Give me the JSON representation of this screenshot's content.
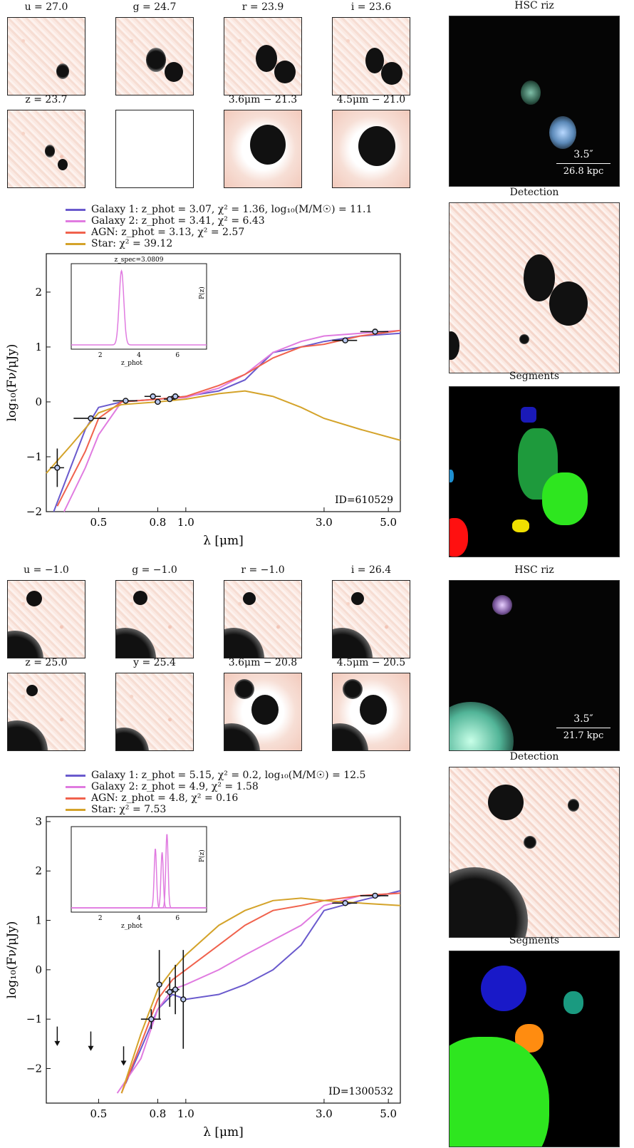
{
  "top": {
    "stamps": [
      {
        "label": "u = 27.0"
      },
      {
        "label": "g = 24.7"
      },
      {
        "label": "r = 23.9"
      },
      {
        "label": "i = 23.6"
      },
      {
        "label": "z = 23.7"
      },
      {
        "label": ""
      },
      {
        "label": "3.6μm − 21.3"
      },
      {
        "label": "4.5μm − 21.0"
      }
    ],
    "side": {
      "rgb_title": "HSC riz",
      "scale_arcsec": "3.5″",
      "scale_kpc": "26.8 kpc",
      "detection_title": "Detection",
      "segments_title": "Segments"
    },
    "legend": [
      {
        "text": "Galaxy 1: z_phot = 3.07, χ² = 1.36, log₁₀(M/M☉) = 11.1",
        "color": "#6a5acd"
      },
      {
        "text": "Galaxy 2: z_phot = 3.41, χ² = 6.43",
        "color": "#e07be0"
      },
      {
        "text": "AGN: z_phot = 3.13, χ² = 2.57",
        "color": "#f0624d"
      },
      {
        "text": "Star: χ² = 39.12",
        "color": "#d4a32a"
      }
    ],
    "chart_data": {
      "type": "line",
      "id_label": "ID=610529",
      "xlabel": "λ [μm]",
      "ylabel": "log₁₀(Fν/μJy)",
      "xscale": "log",
      "xlim": [
        0.33,
        5.5
      ],
      "ylim": [
        -2.0,
        2.7
      ],
      "xticks": [
        0.5,
        0.8,
        1.0,
        3.0,
        5.0
      ],
      "xtick_labels": [
        "0.5",
        "0.8",
        "1.0",
        "3.0",
        "5.0"
      ],
      "yticks": [
        -2,
        -1,
        0,
        1,
        2
      ],
      "ytick_labels": [
        "−2",
        "−1",
        "0",
        "1",
        "2"
      ],
      "series": [
        {
          "name": "Galaxy 1",
          "color": "#6a5acd",
          "x": [
            0.35,
            0.4,
            0.45,
            0.5,
            0.6,
            0.8,
            1.0,
            1.3,
            1.6,
            2.0,
            2.5,
            3.0,
            4.0,
            5.5
          ],
          "y": [
            -2.0,
            -1.2,
            -0.5,
            -0.1,
            0.0,
            0.05,
            0.1,
            0.2,
            0.4,
            0.9,
            1.0,
            1.1,
            1.2,
            1.25
          ]
        },
        {
          "name": "Galaxy 2",
          "color": "#e07be0",
          "x": [
            0.38,
            0.45,
            0.5,
            0.6,
            0.8,
            1.0,
            1.3,
            1.6,
            2.0,
            2.5,
            3.0,
            4.0,
            5.5
          ],
          "y": [
            -2.0,
            -1.2,
            -0.6,
            0.0,
            0.05,
            0.08,
            0.25,
            0.5,
            0.9,
            1.1,
            1.2,
            1.25,
            1.3
          ]
        },
        {
          "name": "AGN",
          "color": "#f0624d",
          "x": [
            0.36,
            0.45,
            0.5,
            0.6,
            0.8,
            1.0,
            1.3,
            1.6,
            2.0,
            2.5,
            3.0,
            4.0,
            5.5
          ],
          "y": [
            -1.9,
            -0.9,
            -0.3,
            0.0,
            0.05,
            0.1,
            0.3,
            0.5,
            0.8,
            1.0,
            1.05,
            1.2,
            1.3
          ]
        },
        {
          "name": "Star",
          "color": "#d4a32a",
          "x": [
            0.33,
            0.4,
            0.5,
            0.6,
            0.8,
            1.0,
            1.3,
            1.6,
            2.0,
            2.5,
            3.0,
            4.0,
            5.5
          ],
          "y": [
            -1.3,
            -0.8,
            -0.2,
            -0.05,
            0.0,
            0.05,
            0.15,
            0.2,
            0.1,
            -0.1,
            -0.3,
            -0.5,
            -0.7
          ]
        }
      ],
      "photometry": [
        {
          "x": 0.36,
          "y": -1.2,
          "xerr": 0.02,
          "yerr": 0.35
        },
        {
          "x": 0.47,
          "y": -0.3,
          "xerr": 0.06,
          "yerr": 0.05
        },
        {
          "x": 0.62,
          "y": 0.02,
          "xerr": 0.06,
          "yerr": 0.03
        },
        {
          "x": 0.77,
          "y": 0.1,
          "xerr": 0.05,
          "yerr": 0.03
        },
        {
          "x": 0.8,
          "y": 0.0,
          "xerr": 0.02,
          "yerr": 0.05
        },
        {
          "x": 0.88,
          "y": 0.05,
          "xerr": 0.04,
          "yerr": 0.04
        },
        {
          "x": 0.92,
          "y": 0.1,
          "xerr": 0.03,
          "yerr": 0.03
        },
        {
          "x": 3.55,
          "y": 1.12,
          "xerr": 0.35,
          "yerr": 0.03
        },
        {
          "x": 4.5,
          "y": 1.28,
          "xerr": 0.5,
          "yerr": 0.03
        }
      ],
      "inset": {
        "title": "z_spec=3.0809",
        "xlabel": "z_phot",
        "ylabel": "P(z)",
        "xticks": [
          2,
          4,
          6
        ],
        "peaks": [
          {
            "z": 3.1,
            "width": 0.12,
            "height": 1.0
          }
        ]
      }
    }
  },
  "bottom": {
    "stamps": [
      {
        "label": "u = −1.0"
      },
      {
        "label": "g = −1.0"
      },
      {
        "label": "r = −1.0"
      },
      {
        "label": "i = 26.4"
      },
      {
        "label": "z = 25.0"
      },
      {
        "label": "y = 25.4"
      },
      {
        "label": "3.6μm − 20.8"
      },
      {
        "label": "4.5μm − 20.5"
      }
    ],
    "side": {
      "rgb_title": "HSC riz",
      "scale_arcsec": "3.5″",
      "scale_kpc": "21.7 kpc",
      "detection_title": "Detection",
      "segments_title": "Segments"
    },
    "legend": [
      {
        "text": "Galaxy 1: z_phot = 5.15, χ² = 0.2, log₁₀(M/M☉) = 12.5",
        "color": "#6a5acd"
      },
      {
        "text": "Galaxy 2: z_phot = 4.9, χ² = 1.58",
        "color": "#e07be0"
      },
      {
        "text": "AGN: z_phot = 4.8, χ² = 0.16",
        "color": "#f0624d"
      },
      {
        "text": "Star: χ² = 7.53",
        "color": "#d4a32a"
      }
    ],
    "chart_data": {
      "type": "line",
      "id_label": "ID=1300532",
      "xlabel": "λ [μm]",
      "ylabel": "log₁₀(Fν/μJy)",
      "xscale": "log",
      "xlim": [
        0.33,
        5.5
      ],
      "ylim": [
        -2.7,
        3.1
      ],
      "xticks": [
        0.5,
        0.8,
        1.0,
        3.0,
        5.0
      ],
      "xtick_labels": [
        "0.5",
        "0.8",
        "1.0",
        "3.0",
        "5.0"
      ],
      "yticks": [
        -2,
        -1,
        0,
        1,
        2,
        3
      ],
      "ytick_labels": [
        "−2",
        "−1",
        "0",
        "1",
        "2",
        "3"
      ],
      "series": [
        {
          "name": "Galaxy 1",
          "color": "#6a5acd",
          "x": [
            0.62,
            0.7,
            0.8,
            0.9,
            1.0,
            1.3,
            1.6,
            2.0,
            2.5,
            3.0,
            4.0,
            5.5
          ],
          "y": [
            -2.3,
            -1.6,
            -0.8,
            -0.5,
            -0.6,
            -0.5,
            -0.3,
            0.0,
            0.5,
            1.2,
            1.4,
            1.6
          ]
        },
        {
          "name": "Galaxy 2",
          "color": "#e07be0",
          "x": [
            0.58,
            0.7,
            0.8,
            0.9,
            1.0,
            1.3,
            1.6,
            2.0,
            2.5,
            3.0,
            4.0,
            5.5
          ],
          "y": [
            -2.5,
            -1.8,
            -0.8,
            -0.4,
            -0.3,
            0.0,
            0.3,
            0.6,
            0.9,
            1.3,
            1.5,
            1.55
          ]
        },
        {
          "name": "AGN",
          "color": "#f0624d",
          "x": [
            0.6,
            0.7,
            0.8,
            0.9,
            1.0,
            1.3,
            1.6,
            2.0,
            2.5,
            3.0,
            4.0,
            5.5
          ],
          "y": [
            -2.5,
            -1.5,
            -0.6,
            -0.2,
            0.0,
            0.5,
            0.9,
            1.2,
            1.3,
            1.4,
            1.5,
            1.55
          ]
        },
        {
          "name": "Star",
          "color": "#d4a32a",
          "x": [
            0.6,
            0.7,
            0.8,
            0.9,
            1.0,
            1.3,
            1.6,
            2.0,
            2.5,
            3.0,
            4.0,
            5.5
          ],
          "y": [
            -2.5,
            -1.3,
            -0.4,
            0.0,
            0.3,
            0.9,
            1.2,
            1.4,
            1.45,
            1.4,
            1.35,
            1.3
          ]
        }
      ],
      "photometry": [
        {
          "x": 0.76,
          "y": -1.0,
          "xerr": 0.06,
          "yerr": 0.2
        },
        {
          "x": 0.81,
          "y": -0.3,
          "xerr": 0.0,
          "yerr": 0.7
        },
        {
          "x": 0.88,
          "y": -0.45,
          "xerr": 0.03,
          "yerr": 0.3
        },
        {
          "x": 0.92,
          "y": -0.4,
          "xerr": 0.03,
          "yerr": 0.5
        },
        {
          "x": 0.98,
          "y": -0.6,
          "xerr": 0.0,
          "yerr": 1.0
        },
        {
          "x": 3.55,
          "y": 1.35,
          "xerr": 0.35,
          "yerr": 0.05
        },
        {
          "x": 4.5,
          "y": 1.5,
          "xerr": 0.5,
          "yerr": 0.05
        }
      ],
      "upper_limits": [
        {
          "x": 0.36,
          "y": -1.5
        },
        {
          "x": 0.47,
          "y": -1.6
        },
        {
          "x": 0.61,
          "y": -1.9
        }
      ],
      "inset": {
        "title": "",
        "xlabel": "z_phot",
        "ylabel": "P(z)",
        "xticks": [
          2,
          4,
          6
        ],
        "peaks": [
          {
            "z": 4.85,
            "width": 0.06,
            "height": 0.8
          },
          {
            "z": 5.2,
            "width": 0.06,
            "height": 0.75
          },
          {
            "z": 5.45,
            "width": 0.06,
            "height": 1.0
          }
        ]
      }
    }
  }
}
